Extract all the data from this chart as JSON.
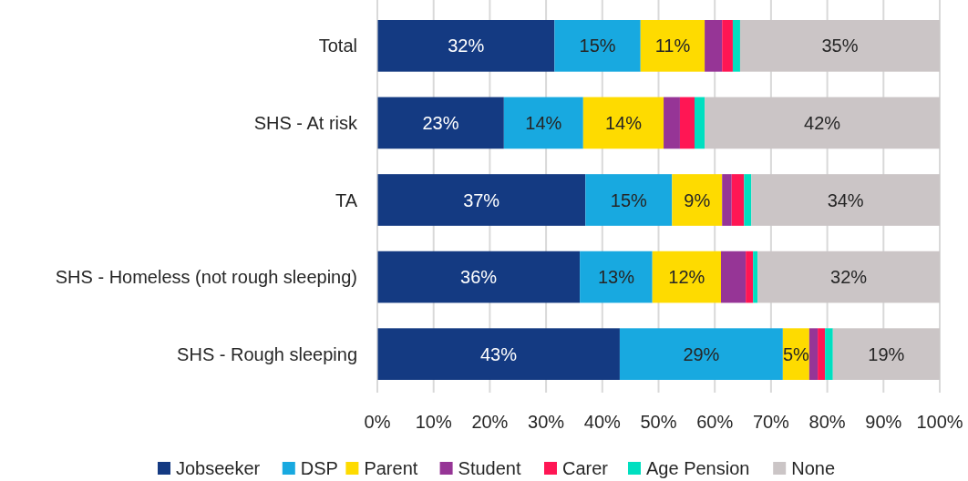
{
  "chart_data": {
    "type": "bar",
    "orientation": "horizontal",
    "stacked": true,
    "categories": [
      "Total",
      "SHS - At risk",
      "TA",
      "SHS - Homeless (not rough sleeping)",
      "SHS - Rough sleeping"
    ],
    "series": [
      {
        "name": "Jobseeker",
        "color": "#143a82",
        "values": [
          31.5,
          22.5,
          37.0,
          36.0,
          43.1
        ],
        "value_labels": [
          "32%",
          "23%",
          "37%",
          "36%",
          "43%"
        ]
      },
      {
        "name": "DSP",
        "color": "#18a9e0",
        "values": [
          15.3,
          14.1,
          15.4,
          12.9,
          29.0
        ],
        "value_labels": [
          "15%",
          "14%",
          "15%",
          "13%",
          "29%"
        ]
      },
      {
        "name": "Parent",
        "color": "#fedb00",
        "values": [
          11.4,
          14.3,
          8.9,
          12.2,
          4.7
        ],
        "value_labels": [
          "11%",
          "14%",
          "9%",
          "12%",
          "5%"
        ]
      },
      {
        "name": "Student",
        "color": "#963596",
        "values": [
          3.1,
          2.9,
          1.7,
          4.4,
          1.5
        ]
      },
      {
        "name": "Carer",
        "color": "#ff1654",
        "values": [
          1.9,
          2.6,
          2.2,
          1.3,
          1.3
        ]
      },
      {
        "name": "Age Pension",
        "color": "#00dfc0",
        "values": [
          1.3,
          1.8,
          1.3,
          0.8,
          1.4
        ]
      },
      {
        "name": "None",
        "color": "#cbc5c6",
        "values": [
          35.5,
          41.8,
          33.5,
          32.4,
          19.0
        ],
        "value_labels": [
          "35%",
          "42%",
          "34%",
          "32%",
          "19%"
        ]
      }
    ],
    "xlim": [
      0,
      100
    ],
    "xticks": [
      {
        "value": 0,
        "label": "0%"
      },
      {
        "value": 10,
        "label": "10%"
      },
      {
        "value": 20,
        "label": "20%"
      },
      {
        "value": 30,
        "label": "30%"
      },
      {
        "value": 40,
        "label": "40%"
      },
      {
        "value": 50,
        "label": "50%"
      },
      {
        "value": 60,
        "label": "60%"
      },
      {
        "value": 70,
        "label": "70%"
      },
      {
        "value": 80,
        "label": "80%"
      },
      {
        "value": 90,
        "label": "90%"
      },
      {
        "value": 100,
        "label": "100%"
      }
    ],
    "grid": "x",
    "legend": "bottom"
  }
}
